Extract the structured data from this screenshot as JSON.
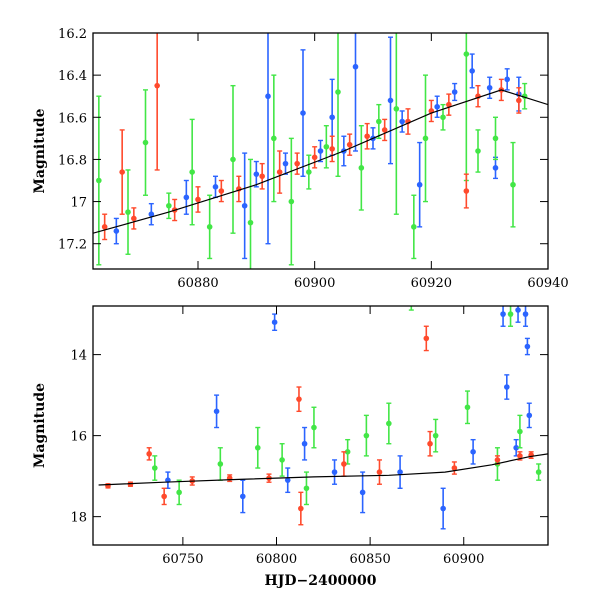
{
  "chart_data": [
    {
      "type": "scatter",
      "title": "",
      "xlabel": "",
      "ylabel": "Magnitude",
      "xlim": [
        60862,
        60940
      ],
      "ylim": [
        17.32,
        16.2
      ],
      "y_inverted": true,
      "grid": false,
      "legend": "none",
      "x_ticks": [
        60880,
        60900,
        60920,
        60940
      ],
      "y_ticks": [
        16.2,
        16.4,
        16.6,
        16.8,
        17,
        17.2
      ],
      "y_tick_labels": [
        "16.2",
        "16.4",
        "16.6",
        "16.8",
        "17",
        "17.2"
      ],
      "trend_line": {
        "x": [
          60862,
          60875,
          60890,
          60905,
          60920,
          60932,
          60940
        ],
        "y": [
          17.15,
          17.05,
          16.92,
          16.76,
          16.58,
          16.47,
          16.54
        ]
      },
      "series": [
        {
          "color": "#2b64ff",
          "points": [
            [
              60866,
              17.14,
              0.06
            ],
            [
              60872,
              17.06,
              0.05
            ],
            [
              60878,
              16.98,
              0.08
            ],
            [
              60883,
              16.93,
              0.05
            ],
            [
              60888,
              17.02,
              0.25
            ],
            [
              60890,
              16.87,
              0.06
            ],
            [
              60892,
              16.5,
              0.7
            ],
            [
              60895,
              16.82,
              0.05
            ],
            [
              60898,
              16.58,
              0.3
            ],
            [
              60901,
              16.76,
              0.05
            ],
            [
              60903,
              16.6,
              0.18
            ],
            [
              60905,
              16.76,
              0.07
            ],
            [
              60907,
              16.36,
              0.4
            ],
            [
              60910,
              16.7,
              0.05
            ],
            [
              60913,
              16.52,
              0.3
            ],
            [
              60915,
              16.62,
              0.05
            ],
            [
              60918,
              16.92,
              0.2
            ],
            [
              60921,
              16.55,
              0.05
            ],
            [
              60924,
              16.48,
              0.04
            ],
            [
              60927,
              16.38,
              0.08
            ],
            [
              60930,
              16.46,
              0.05
            ],
            [
              60931,
              16.84,
              0.05
            ],
            [
              60933,
              16.42,
              0.05
            ],
            [
              60935,
              16.49,
              0.08
            ]
          ]
        },
        {
          "color": "#42e646",
          "points": [
            [
              60863,
              16.9,
              0.4
            ],
            [
              60868,
              17.05,
              0.2
            ],
            [
              60871,
              16.72,
              0.25
            ],
            [
              60875,
              17.02,
              0.06
            ],
            [
              60879,
              16.86,
              0.25
            ],
            [
              60882,
              17.12,
              0.15
            ],
            [
              60886,
              16.8,
              0.35
            ],
            [
              60889,
              17.1,
              0.3
            ],
            [
              60893,
              16.7,
              0.3
            ],
            [
              60896,
              17.0,
              0.3
            ],
            [
              60899,
              16.86,
              0.08
            ],
            [
              60902,
              16.74,
              0.1
            ],
            [
              60904,
              16.48,
              0.4
            ],
            [
              60908,
              16.84,
              0.2
            ],
            [
              60911,
              16.62,
              0.08
            ],
            [
              60914,
              16.56,
              0.5
            ],
            [
              60917,
              17.12,
              0.15
            ],
            [
              60919,
              16.7,
              0.3
            ],
            [
              60922,
              16.6,
              0.06
            ],
            [
              60926,
              16.3,
              0.6
            ],
            [
              60928,
              16.76,
              0.1
            ],
            [
              60931,
              16.7,
              0.1
            ],
            [
              60934,
              16.92,
              0.2
            ],
            [
              60936,
              16.5,
              0.06
            ]
          ]
        },
        {
          "color": "#ff4a2c",
          "points": [
            [
              60864,
              17.12,
              0.06
            ],
            [
              60867,
              16.86,
              0.2
            ],
            [
              60869,
              17.08,
              0.05
            ],
            [
              60873,
              16.45,
              0.4
            ],
            [
              60876,
              17.04,
              0.05
            ],
            [
              60880,
              16.99,
              0.06
            ],
            [
              60884,
              16.95,
              0.05
            ],
            [
              60887,
              16.94,
              0.06
            ],
            [
              60891,
              16.88,
              0.06
            ],
            [
              60894,
              16.86,
              0.1
            ],
            [
              60897,
              16.82,
              0.05
            ],
            [
              60900,
              16.79,
              0.05
            ],
            [
              60903,
              16.75,
              0.06
            ],
            [
              60906,
              16.73,
              0.05
            ],
            [
              60909,
              16.69,
              0.06
            ],
            [
              60912,
              16.66,
              0.05
            ],
            [
              60916,
              16.62,
              0.06
            ],
            [
              60920,
              16.57,
              0.05
            ],
            [
              60923,
              16.54,
              0.05
            ],
            [
              60926,
              16.95,
              0.08
            ],
            [
              60928,
              16.5,
              0.05
            ],
            [
              60932,
              16.47,
              0.05
            ],
            [
              60935,
              16.52,
              0.06
            ]
          ]
        }
      ]
    },
    {
      "type": "scatter",
      "title": "",
      "xlabel": "HJD−2400000",
      "ylabel": "Magnitude",
      "xlim": [
        60702,
        60945
      ],
      "ylim": [
        18.7,
        12.8
      ],
      "y_inverted": true,
      "grid": false,
      "legend": "none",
      "x_ticks": [
        60750,
        60800,
        60850,
        60900
      ],
      "y_ticks": [
        14,
        16,
        18
      ],
      "trend_line": {
        "x": [
          60705,
          60740,
          60780,
          60820,
          60860,
          60890,
          60915,
          60935,
          60945
        ],
        "y": [
          17.22,
          17.15,
          17.08,
          17.02,
          16.98,
          16.9,
          16.72,
          16.52,
          16.45
        ]
      },
      "series": [
        {
          "color": "#2b64ff",
          "points": [
            [
              60742,
              17.1,
              0.2
            ],
            [
              60768,
              15.4,
              0.4
            ],
            [
              60782,
              17.5,
              0.4
            ],
            [
              60799,
              13.2,
              0.2
            ],
            [
              60806,
              17.1,
              0.3
            ],
            [
              60815,
              16.2,
              0.4
            ],
            [
              60831,
              16.9,
              0.3
            ],
            [
              60846,
              17.4,
              0.5
            ],
            [
              60866,
              16.9,
              0.4
            ],
            [
              60889,
              17.8,
              0.5
            ],
            [
              60905,
              16.4,
              0.3
            ],
            [
              60921,
              13.0,
              0.3
            ],
            [
              60923,
              14.8,
              0.3
            ],
            [
              60928,
              16.3,
              0.2
            ],
            [
              60929,
              12.9,
              0.3
            ],
            [
              60933,
              13.0,
              0.3
            ],
            [
              60934,
              13.8,
              0.2
            ],
            [
              60935,
              15.5,
              0.3
            ]
          ]
        },
        {
          "color": "#42e646",
          "points": [
            [
              60735,
              16.8,
              0.3
            ],
            [
              60748,
              17.4,
              0.3
            ],
            [
              60770,
              16.7,
              0.4
            ],
            [
              60790,
              16.3,
              0.5
            ],
            [
              60803,
              16.6,
              0.4
            ],
            [
              60816,
              17.3,
              0.4
            ],
            [
              60820,
              15.8,
              0.5
            ],
            [
              60838,
              16.4,
              0.3
            ],
            [
              60848,
              16.0,
              0.5
            ],
            [
              60860,
              15.7,
              0.5
            ],
            [
              60872,
              12.7,
              0.2
            ],
            [
              60885,
              16.0,
              0.4
            ],
            [
              60902,
              15.3,
              0.4
            ],
            [
              60918,
              16.7,
              0.4
            ],
            [
              60925,
              13.0,
              0.3
            ],
            [
              60930,
              15.9,
              0.4
            ],
            [
              60940,
              16.9,
              0.2
            ]
          ]
        },
        {
          "color": "#ff4a2c",
          "points": [
            [
              60710,
              17.24,
              0.05
            ],
            [
              60722,
              17.2,
              0.05
            ],
            [
              60732,
              16.45,
              0.15
            ],
            [
              60740,
              17.5,
              0.2
            ],
            [
              60755,
              17.12,
              0.1
            ],
            [
              60775,
              17.05,
              0.08
            ],
            [
              60796,
              17.05,
              0.1
            ],
            [
              60812,
              15.1,
              0.3
            ],
            [
              60813,
              17.8,
              0.4
            ],
            [
              60836,
              16.7,
              0.3
            ],
            [
              60855,
              16.9,
              0.3
            ],
            [
              60880,
              13.6,
              0.3
            ],
            [
              60882,
              16.2,
              0.3
            ],
            [
              60895,
              16.8,
              0.15
            ],
            [
              60918,
              16.6,
              0.1
            ],
            [
              60930,
              16.5,
              0.1
            ],
            [
              60936,
              16.48,
              0.08
            ]
          ]
        }
      ]
    }
  ]
}
